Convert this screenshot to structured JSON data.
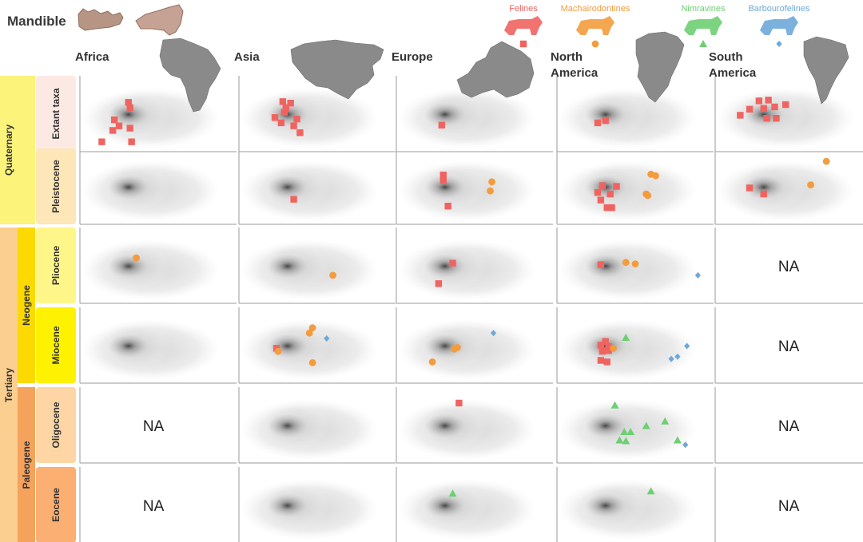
{
  "title": "Mandible",
  "colors": {
    "period_quaternary": "#fbf37a",
    "period_tertiary": "#fbcf8f",
    "epoch_neogene": "#fcd900",
    "epoch_paleogene": "#f5a25c",
    "age_extant": "#fde9e4",
    "age_pleistocene": "#fde6b7",
    "age_pliocene": "#fff689",
    "age_miocene": "#fff200",
    "age_oligocene": "#fed5a4",
    "age_eocene": "#fcaf72",
    "map_gray": "#8a8a8a",
    "density_gray": "#4a4a4a"
  },
  "legend": [
    {
      "key": "felines",
      "label": "Felines",
      "color": "#ef6461",
      "marker": "square",
      "icon": "lion-silhouette-icon"
    },
    {
      "key": "machairodontines",
      "label": "Machairodontines",
      "color": "#f39c3d",
      "marker": "circle",
      "icon": "sabertooth-silhouette-icon"
    },
    {
      "key": "nimravines",
      "label": "Nimravines",
      "color": "#6ecf73",
      "marker": "triangle",
      "icon": "nimravid-silhouette-icon"
    },
    {
      "key": "barbourofelines",
      "label": "Barbourofelines",
      "color": "#6ea8d9",
      "marker": "diamond",
      "icon": "barbourofelid-silhouette-icon"
    }
  ],
  "periods": [
    {
      "label": "Quaternary",
      "rows": [
        0,
        1
      ]
    },
    {
      "label": "Tertiary",
      "rows": [
        2,
        3,
        4,
        5
      ]
    }
  ],
  "epochs": [
    {
      "label": "Neogene",
      "rows": [
        2,
        3
      ]
    },
    {
      "label": "Paleogene",
      "rows": [
        4,
        5
      ]
    }
  ],
  "ages": [
    "Extant taxa",
    "Pleistocene",
    "Pliocene",
    "Miocene",
    "Oligocene",
    "Eocene"
  ],
  "regions": [
    "Africa",
    "Asia",
    "Europe",
    "North America",
    "South America"
  ],
  "region_map_icons": [
    "africa-map-icon",
    "asia-map-icon",
    "europe-map-icon",
    "north-america-map-icon",
    "south-america-map-icon"
  ],
  "na_label": "NA",
  "chart_data": {
    "type": "scatter",
    "description_axes": "morphospace scatter (unlabeled axes), gray density of all taxa in background",
    "xlim": [
      0,
      1
    ],
    "ylim": [
      0,
      1
    ],
    "panels": [
      {
        "age": "Extant taxa",
        "region": "Africa",
        "na": false,
        "points": {
          "felines": [
            [
              0.31,
              0.65
            ],
            [
              0.32,
              0.58
            ],
            [
              0.22,
              0.42
            ],
            [
              0.25,
              0.34
            ],
            [
              0.21,
              0.28
            ],
            [
              0.32,
              0.31
            ],
            [
              0.33,
              0.13
            ],
            [
              0.14,
              0.13
            ]
          ]
        }
      },
      {
        "age": "Extant taxa",
        "region": "Asia",
        "na": false,
        "points": {
          "felines": [
            [
              0.28,
              0.66
            ],
            [
              0.33,
              0.64
            ],
            [
              0.3,
              0.58
            ],
            [
              0.29,
              0.52
            ],
            [
              0.23,
              0.45
            ],
            [
              0.37,
              0.43
            ],
            [
              0.27,
              0.38
            ],
            [
              0.35,
              0.34
            ],
            [
              0.39,
              0.25
            ]
          ]
        }
      },
      {
        "age": "Extant taxa",
        "region": "Europe",
        "na": false,
        "points": {
          "felines": [
            [
              0.29,
              0.35
            ]
          ]
        }
      },
      {
        "age": "Extant taxa",
        "region": "North America",
        "na": false,
        "points": {
          "felines": [
            [
              0.26,
              0.38
            ],
            [
              0.31,
              0.41
            ]
          ]
        }
      },
      {
        "age": "Extant taxa",
        "region": "South America",
        "na": false,
        "points": {
          "felines": [
            [
              0.28,
              0.67
            ],
            [
              0.34,
              0.68
            ],
            [
              0.22,
              0.56
            ],
            [
              0.31,
              0.57
            ],
            [
              0.38,
              0.59
            ],
            [
              0.45,
              0.62
            ],
            [
              0.16,
              0.48
            ],
            [
              0.33,
              0.44
            ],
            [
              0.39,
              0.44
            ]
          ]
        }
      },
      {
        "age": "Pleistocene",
        "region": "Africa",
        "na": false,
        "points": {}
      },
      {
        "age": "Pleistocene",
        "region": "Asia",
        "na": false,
        "points": {
          "felines": [
            [
              0.35,
              0.33
            ]
          ]
        }
      },
      {
        "age": "Pleistocene",
        "region": "Europe",
        "na": false,
        "points": {
          "felines": [
            [
              0.3,
              0.65
            ],
            [
              0.3,
              0.58
            ],
            [
              0.33,
              0.24
            ]
          ],
          "machairodontines": [
            [
              0.61,
              0.56
            ],
            [
              0.6,
              0.44
            ]
          ]
        }
      },
      {
        "age": "Pleistocene",
        "region": "North America",
        "na": false,
        "points": {
          "felines": [
            [
              0.29,
              0.51
            ],
            [
              0.38,
              0.5
            ],
            [
              0.26,
              0.42
            ],
            [
              0.34,
              0.4
            ],
            [
              0.28,
              0.32
            ],
            [
              0.32,
              0.22
            ],
            [
              0.35,
              0.22
            ]
          ],
          "machairodontines": [
            [
              0.6,
              0.66
            ],
            [
              0.63,
              0.64
            ],
            [
              0.57,
              0.4
            ],
            [
              0.58,
              0.38
            ]
          ]
        }
      },
      {
        "age": "Pleistocene",
        "region": "South America",
        "na": false,
        "points": {
          "felines": [
            [
              0.22,
              0.48
            ],
            [
              0.31,
              0.4
            ]
          ],
          "machairodontines": [
            [
              0.61,
              0.52
            ],
            [
              0.71,
              0.83
            ]
          ]
        }
      },
      {
        "age": "Pliocene",
        "region": "Africa",
        "na": false,
        "points": {
          "machairodontines": [
            [
              0.36,
              0.6
            ]
          ]
        }
      },
      {
        "age": "Pliocene",
        "region": "Asia",
        "na": false,
        "points": {
          "machairodontines": [
            [
              0.6,
              0.37
            ]
          ]
        }
      },
      {
        "age": "Pliocene",
        "region": "Europe",
        "na": false,
        "points": {
          "felines": [
            [
              0.36,
              0.53
            ],
            [
              0.27,
              0.26
            ]
          ]
        }
      },
      {
        "age": "Pliocene",
        "region": "North America",
        "na": false,
        "points": {
          "felines": [
            [
              0.28,
              0.51
            ]
          ],
          "machairodontines": [
            [
              0.44,
              0.54
            ],
            [
              0.5,
              0.52
            ]
          ],
          "barbourofelines": [
            [
              0.9,
              0.37
            ]
          ]
        }
      },
      {
        "age": "Pliocene",
        "region": "South America",
        "na": true,
        "points": {}
      },
      {
        "age": "Miocene",
        "region": "Africa",
        "na": false,
        "points": {}
      },
      {
        "age": "Miocene",
        "region": "Asia",
        "na": false,
        "points": {
          "felines": [
            [
              0.24,
              0.46
            ]
          ],
          "machairodontines": [
            [
              0.47,
              0.73
            ],
            [
              0.45,
              0.66
            ],
            [
              0.25,
              0.42
            ],
            [
              0.47,
              0.27
            ]
          ],
          "barbourofelines": [
            [
              0.56,
              0.59
            ]
          ]
        }
      },
      {
        "age": "Miocene",
        "region": "Europe",
        "na": false,
        "points": {
          "machairodontines": [
            [
              0.39,
              0.47
            ],
            [
              0.37,
              0.45
            ],
            [
              0.23,
              0.28
            ]
          ],
          "barbourofelines": [
            [
              0.62,
              0.66
            ]
          ]
        }
      },
      {
        "age": "Miocene",
        "region": "North America",
        "na": false,
        "points": {
          "felines": [
            [
              0.31,
              0.55
            ],
            [
              0.28,
              0.5
            ],
            [
              0.33,
              0.48
            ],
            [
              0.29,
              0.42
            ],
            [
              0.33,
              0.43
            ],
            [
              0.28,
              0.3
            ],
            [
              0.32,
              0.28
            ]
          ],
          "machairodontines": [
            [
              0.36,
              0.46
            ]
          ],
          "nimravines": [
            [
              0.44,
              0.6
            ]
          ],
          "barbourofelines": [
            [
              0.77,
              0.35
            ],
            [
              0.73,
              0.32
            ],
            [
              0.83,
              0.49
            ]
          ]
        }
      },
      {
        "age": "Miocene",
        "region": "South America",
        "na": true,
        "points": {}
      },
      {
        "age": "Oligocene",
        "region": "Africa",
        "na": true,
        "points": {}
      },
      {
        "age": "Oligocene",
        "region": "Asia",
        "na": false,
        "points": {}
      },
      {
        "age": "Oligocene",
        "region": "Europe",
        "na": false,
        "points": {
          "felines": [
            [
              0.4,
              0.79
            ]
          ]
        }
      },
      {
        "age": "Oligocene",
        "region": "North America",
        "na": false,
        "points": {
          "nimravines": [
            [
              0.37,
              0.76
            ],
            [
              0.69,
              0.55
            ],
            [
              0.57,
              0.49
            ],
            [
              0.43,
              0.41
            ],
            [
              0.47,
              0.41
            ],
            [
              0.4,
              0.3
            ],
            [
              0.44,
              0.29
            ],
            [
              0.77,
              0.3
            ]
          ],
          "barbourofelines": [
            [
              0.82,
              0.24
            ]
          ]
        }
      },
      {
        "age": "Oligocene",
        "region": "South America",
        "na": true,
        "points": {}
      },
      {
        "age": "Eocene",
        "region": "Africa",
        "na": true,
        "points": {}
      },
      {
        "age": "Eocene",
        "region": "Asia",
        "na": false,
        "points": {}
      },
      {
        "age": "Eocene",
        "region": "Europe",
        "na": false,
        "points": {
          "nimravines": [
            [
              0.36,
              0.65
            ]
          ]
        }
      },
      {
        "age": "Eocene",
        "region": "North America",
        "na": false,
        "points": {
          "nimravines": [
            [
              0.6,
              0.68
            ]
          ]
        }
      },
      {
        "age": "Eocene",
        "region": "South America",
        "na": true,
        "points": {}
      }
    ]
  }
}
